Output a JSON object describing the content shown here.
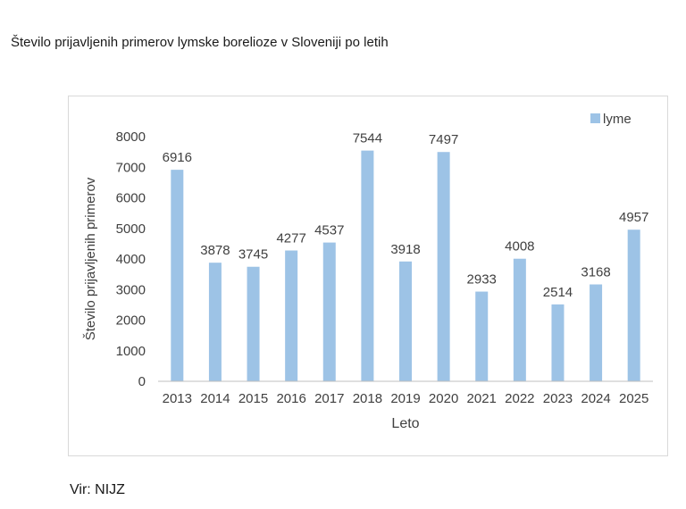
{
  "page": {
    "title": "Število prijavljenih primerov lymske borelioze v Sloveniji po letih",
    "source": "Vir: NIJZ"
  },
  "colors": {
    "bar": "#9dc3e6",
    "axis": "#bfbfbf",
    "text": "#404040"
  },
  "chart_data": {
    "type": "bar",
    "title": "",
    "xlabel": "Leto",
    "ylabel": "Število prijavljenih primerov",
    "categories": [
      "2013",
      "2014",
      "2015",
      "2016",
      "2017",
      "2018",
      "2019",
      "2020",
      "2021",
      "2022",
      "2023",
      "2024",
      "2025"
    ],
    "series": [
      {
        "name": "lyme",
        "values": [
          6916,
          3878,
          3745,
          4277,
          4537,
          7544,
          3918,
          7497,
          2933,
          4008,
          2514,
          3168,
          4957
        ]
      }
    ],
    "ylim": [
      0,
      8000
    ],
    "yticks": [
      0,
      1000,
      2000,
      3000,
      4000,
      5000,
      6000,
      7000,
      8000
    ],
    "grid": false,
    "data_labels": true,
    "legend": "top-right"
  }
}
